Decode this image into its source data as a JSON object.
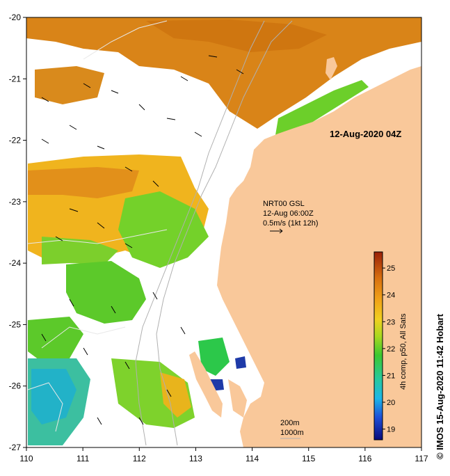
{
  "title": "12-Aug-2020 04Z",
  "axes": {
    "x_ticks": [
      "110",
      "111",
      "112",
      "113",
      "114",
      "115",
      "116",
      "117"
    ],
    "y_ticks": [
      "-20",
      "-21",
      "-22",
      "-23",
      "-24",
      "-25",
      "-26",
      "-27"
    ],
    "xlim": [
      110,
      117
    ],
    "ylim": [
      -27,
      -20
    ]
  },
  "current_legend": {
    "line1": "NRT00 GSL",
    "line2": "12-Aug 06:00Z",
    "line3": "0.5m/s (1kt 12h)"
  },
  "contours": {
    "label1": "200m",
    "label2": "1000m"
  },
  "colorbar": {
    "label": "4h comp, p50, All Sats",
    "ticks": [
      "19",
      "20",
      "21",
      "22",
      "23",
      "24",
      "25"
    ],
    "range": [
      18.6,
      25.6
    ]
  },
  "credit": "© IMOS 15-Aug-2020 11:42 Hobart",
  "colors": {
    "land": "#f9c89a",
    "sst_warm": "#d97a12",
    "sst_mid": "#f2b51d",
    "sst_cool": "#5ccf26",
    "sst_cold": "#1e3aa8"
  }
}
